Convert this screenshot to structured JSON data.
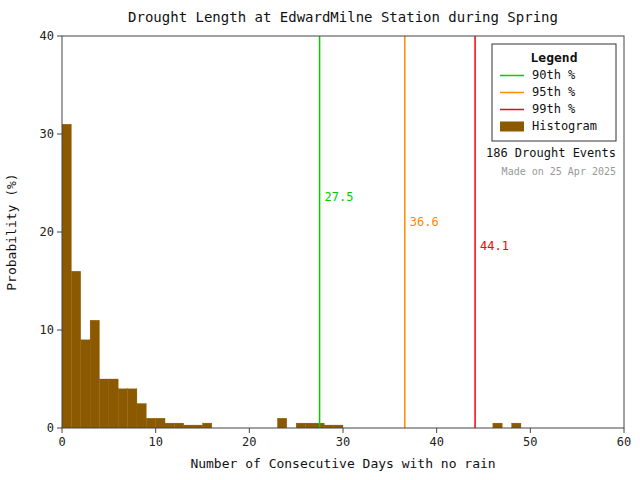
{
  "chart_data": {
    "type": "histogram",
    "title": "Drought Length at EdwardMilne Station during Spring",
    "x_label": "Number of Consecutive Days with no rain",
    "y_label": "Probability (%)",
    "xlim": [
      0,
      60
    ],
    "ylim": [
      0,
      40
    ],
    "xticks": [
      0,
      10,
      20,
      30,
      40,
      50,
      60
    ],
    "yticks": [
      0,
      10,
      20,
      30,
      40
    ],
    "grid": false,
    "name": "Histogram",
    "color": "#8B5A00",
    "bins": [
      0,
      1,
      2,
      3,
      4,
      5,
      6,
      7,
      8,
      9,
      10,
      11,
      12,
      13,
      14,
      15,
      16,
      17,
      18,
      19,
      20,
      21,
      22,
      23,
      24,
      25,
      26,
      27,
      28,
      29,
      30,
      31,
      32,
      33,
      34,
      35,
      36,
      37,
      38,
      39,
      40,
      41,
      42,
      43,
      44,
      45,
      46,
      47,
      48,
      49,
      50,
      51,
      52,
      53,
      54,
      55,
      56,
      57,
      58,
      59,
      60
    ],
    "counts": [
      31.0,
      16.0,
      9.0,
      11.0,
      5.0,
      5.0,
      4.0,
      4.0,
      2.5,
      1.0,
      1.0,
      0.5,
      0.5,
      0.3,
      0.3,
      0.5,
      0.0,
      0.0,
      0.0,
      0.0,
      0.0,
      0.0,
      0.0,
      1.0,
      0.0,
      0.5,
      0.5,
      0.5,
      0.3,
      0.3,
      0.0,
      0.0,
      0.0,
      0.0,
      0.0,
      0.0,
      0.0,
      0.0,
      0.0,
      0.0,
      0.0,
      0.0,
      0.0,
      0.0,
      0.0,
      0.0,
      0.5,
      0.0,
      0.5,
      0.0,
      0.0,
      0.0,
      0.0,
      0.0,
      0.0,
      0.0,
      0.0,
      0.0,
      0.0,
      0.0
    ],
    "percentile_lines": [
      {
        "name": "90th %",
        "value": 27.5,
        "color": "#00cc00"
      },
      {
        "name": "95th %",
        "value": 36.6,
        "color": "#ff8800"
      },
      {
        "name": "99th %",
        "value": 44.1,
        "color": "#ff0000"
      }
    ],
    "legend": "upper right",
    "legend_title": "Legend",
    "annotations": [
      "186 Drought Events",
      "Made on 25 Apr 2025"
    ]
  }
}
